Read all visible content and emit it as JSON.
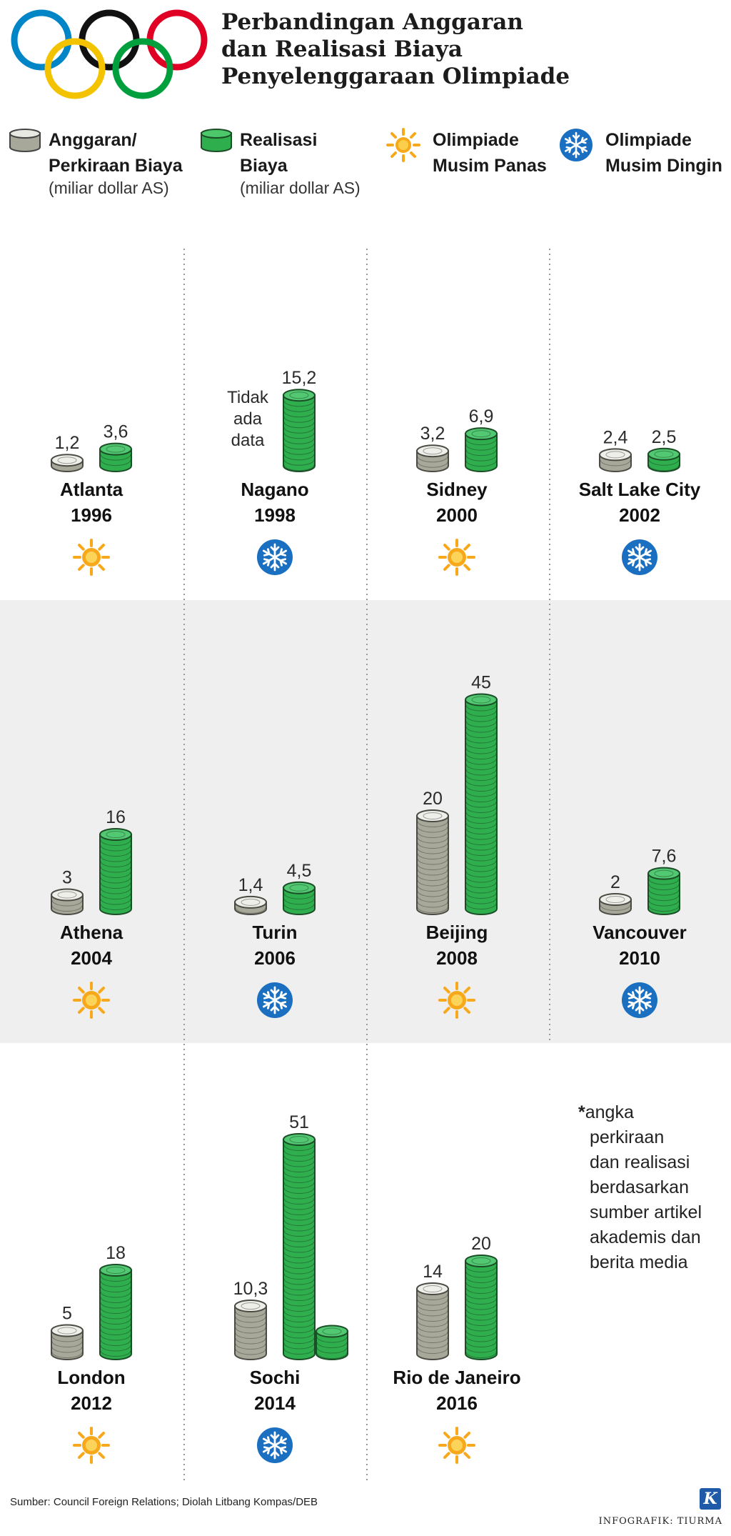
{
  "title_lines": [
    "Perbandingan Anggaran",
    "dan Realisasi Biaya",
    "Penyelenggaraan Olimpiade"
  ],
  "legend": {
    "budget": {
      "line1": "Anggaran/",
      "line2": "Perkiraan Biaya",
      "unit": "(miliar dollar AS)"
    },
    "actual": {
      "line1": "Realisasi",
      "line2": "Biaya",
      "unit": "(miliar dollar AS)"
    },
    "summer": {
      "line1": "Olimpiade",
      "line2": "Musim Panas"
    },
    "winter": {
      "line1": "Olimpiade",
      "line2": "Musim Dingin"
    }
  },
  "colors": {
    "budget": "#a8a89a",
    "actual": "#2fae4e",
    "sun": "#f7a81b",
    "snow": "#1a6fc0",
    "ring_blue": "#0085c7",
    "ring_black": "#111111",
    "ring_red": "#df0024",
    "ring_yellow": "#f4c300",
    "ring_green": "#009f3d"
  },
  "chart_data": {
    "type": "bar",
    "title": "Perbandingan Anggaran dan Realisasi Biaya Penyelenggaraan Olimpiade",
    "unit": "miliar dollar AS",
    "series_names": [
      "Anggaran/Perkiraan Biaya",
      "Realisasi Biaya"
    ],
    "events": [
      {
        "city": "Atlanta",
        "year": "1996",
        "season": "summer",
        "budget": 1.2,
        "budget_label": "1,2",
        "actual": 3.6,
        "actual_label": "3,6"
      },
      {
        "city": "Nagano",
        "year": "1998",
        "season": "winter",
        "budget": null,
        "budget_label": "Tidak ada data",
        "actual": 15.2,
        "actual_label": "15,2"
      },
      {
        "city": "Sidney",
        "year": "2000",
        "season": "summer",
        "budget": 3.2,
        "budget_label": "3,2",
        "actual": 6.9,
        "actual_label": "6,9"
      },
      {
        "city": "Salt Lake City",
        "year": "2002",
        "season": "winter",
        "budget": 2.4,
        "budget_label": "2,4",
        "actual": 2.5,
        "actual_label": "2,5"
      },
      {
        "city": "Athena",
        "year": "2004",
        "season": "summer",
        "budget": 3,
        "budget_label": "3",
        "actual": 16,
        "actual_label": "16"
      },
      {
        "city": "Turin",
        "year": "2006",
        "season": "winter",
        "budget": 1.4,
        "budget_label": "1,4",
        "actual": 4.5,
        "actual_label": "4,5"
      },
      {
        "city": "Beijing",
        "year": "2008",
        "season": "summer",
        "budget": 20,
        "budget_label": "20",
        "actual": 45,
        "actual_label": "45"
      },
      {
        "city": "Vancouver",
        "year": "2010",
        "season": "winter",
        "budget": 2,
        "budget_label": "2",
        "actual": 7.6,
        "actual_label": "7,6"
      },
      {
        "city": "London",
        "year": "2012",
        "season": "summer",
        "budget": 5,
        "budget_label": "5",
        "actual": 18,
        "actual_label": "18"
      },
      {
        "city": "Sochi",
        "year": "2014",
        "season": "winter",
        "budget": 10.3,
        "budget_label": "10,3",
        "actual": 51,
        "actual_label": "51"
      },
      {
        "city": "Rio de Janeiro",
        "year": "2016",
        "season": "summer",
        "budget": 14,
        "budget_label": "14",
        "actual": 20,
        "actual_label": "20"
      }
    ]
  },
  "footnote": {
    "star": "*",
    "lines": [
      "angka",
      "perkiraan",
      "dan realisasi",
      "berdasarkan",
      "sumber artikel",
      "akademis dan",
      "berita media"
    ]
  },
  "source": "Sumber: Council Foreign Relations; Diolah Litbang Kompas/DEB",
  "credit": "INFOGRAFIK: TIURMA",
  "logo_letter": "K"
}
